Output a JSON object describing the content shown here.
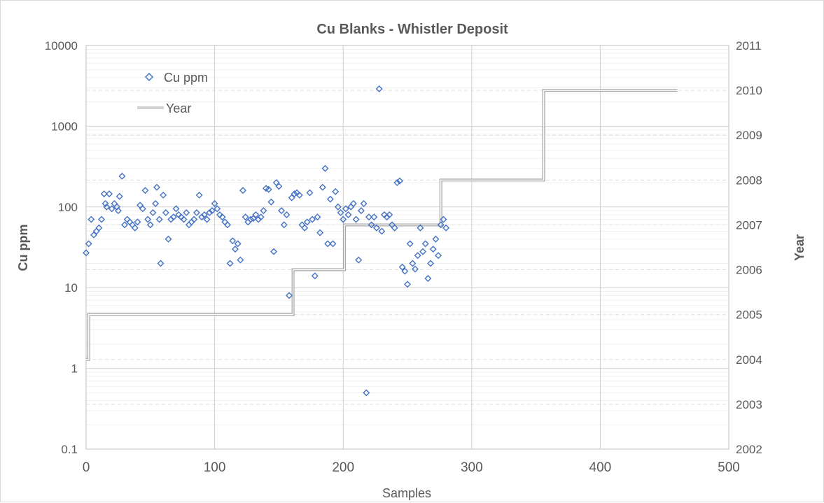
{
  "chart_data": {
    "type": "scatter",
    "title": "Cu Blanks - Whistler Deposit",
    "xlabel": "Samples",
    "ylabel": "Cu ppm",
    "y2label": "Year",
    "xlim": [
      0,
      500
    ],
    "ylim": [
      0.1,
      10000
    ],
    "yscale": "log",
    "y2lim": [
      2002,
      2011
    ],
    "x_ticks": [
      "0",
      "100",
      "200",
      "300",
      "400",
      "500"
    ],
    "y_ticks": [
      "0.1",
      "1",
      "10",
      "100",
      "1000",
      "10000"
    ],
    "y2_ticks": [
      "2002",
      "2003",
      "2004",
      "2005",
      "2006",
      "2007",
      "2008",
      "2009",
      "2010",
      "2011"
    ],
    "grid": true,
    "legend_position": "top-left",
    "series": [
      {
        "name": "Cu ppm",
        "kind": "scatter",
        "axis": "left",
        "marker": "diamond",
        "color": "#4472c4",
        "points": [
          [
            0,
            27
          ],
          [
            2,
            35
          ],
          [
            4,
            70
          ],
          [
            6,
            45
          ],
          [
            8,
            50
          ],
          [
            10,
            55
          ],
          [
            12,
            70
          ],
          [
            14,
            145
          ],
          [
            15,
            110
          ],
          [
            16,
            100
          ],
          [
            18,
            145
          ],
          [
            20,
            95
          ],
          [
            22,
            110
          ],
          [
            24,
            100
          ],
          [
            25,
            90
          ],
          [
            26,
            135
          ],
          [
            28,
            240
          ],
          [
            30,
            60
          ],
          [
            32,
            70
          ],
          [
            34,
            65
          ],
          [
            36,
            60
          ],
          [
            38,
            55
          ],
          [
            40,
            65
          ],
          [
            42,
            105
          ],
          [
            44,
            95
          ],
          [
            46,
            160
          ],
          [
            48,
            70
          ],
          [
            50,
            60
          ],
          [
            52,
            85
          ],
          [
            54,
            110
          ],
          [
            55,
            175
          ],
          [
            57,
            70
          ],
          [
            58,
            20
          ],
          [
            60,
            140
          ],
          [
            62,
            85
          ],
          [
            64,
            40
          ],
          [
            66,
            70
          ],
          [
            68,
            75
          ],
          [
            70,
            95
          ],
          [
            72,
            80
          ],
          [
            74,
            75
          ],
          [
            76,
            70
          ],
          [
            78,
            85
          ],
          [
            80,
            60
          ],
          [
            82,
            65
          ],
          [
            84,
            70
          ],
          [
            86,
            85
          ],
          [
            88,
            140
          ],
          [
            90,
            75
          ],
          [
            92,
            80
          ],
          [
            94,
            70
          ],
          [
            96,
            85
          ],
          [
            98,
            90
          ],
          [
            100,
            110
          ],
          [
            102,
            95
          ],
          [
            104,
            80
          ],
          [
            106,
            75
          ],
          [
            108,
            65
          ],
          [
            110,
            60
          ],
          [
            112,
            20
          ],
          [
            114,
            38
          ],
          [
            116,
            30
          ],
          [
            118,
            35
          ],
          [
            120,
            22
          ],
          [
            122,
            160
          ],
          [
            124,
            75
          ],
          [
            126,
            65
          ],
          [
            128,
            70
          ],
          [
            130,
            72
          ],
          [
            132,
            80
          ],
          [
            134,
            70
          ],
          [
            136,
            75
          ],
          [
            138,
            90
          ],
          [
            140,
            170
          ],
          [
            142,
            165
          ],
          [
            144,
            115
          ],
          [
            146,
            28
          ],
          [
            148,
            200
          ],
          [
            150,
            180
          ],
          [
            152,
            90
          ],
          [
            154,
            60
          ],
          [
            156,
            80
          ],
          [
            158,
            8
          ],
          [
            160,
            130
          ],
          [
            162,
            145
          ],
          [
            164,
            150
          ],
          [
            166,
            140
          ],
          [
            168,
            60
          ],
          [
            170,
            55
          ],
          [
            172,
            65
          ],
          [
            174,
            150
          ],
          [
            176,
            70
          ],
          [
            178,
            14
          ],
          [
            180,
            75
          ],
          [
            182,
            48
          ],
          [
            184,
            175
          ],
          [
            186,
            300
          ],
          [
            188,
            35
          ],
          [
            190,
            125
          ],
          [
            192,
            35
          ],
          [
            194,
            155
          ],
          [
            196,
            100
          ],
          [
            198,
            85
          ],
          [
            200,
            70
          ],
          [
            202,
            95
          ],
          [
            204,
            80
          ],
          [
            206,
            100
          ],
          [
            208,
            110
          ],
          [
            210,
            70
          ],
          [
            212,
            22
          ],
          [
            214,
            90
          ],
          [
            216,
            110
          ],
          [
            218,
            0.5
          ],
          [
            220,
            75
          ],
          [
            222,
            60
          ],
          [
            224,
            75
          ],
          [
            226,
            55
          ],
          [
            228,
            2900
          ],
          [
            230,
            50
          ],
          [
            232,
            80
          ],
          [
            234,
            75
          ],
          [
            236,
            80
          ],
          [
            238,
            60
          ],
          [
            240,
            55
          ],
          [
            242,
            200
          ],
          [
            244,
            210
          ],
          [
            246,
            18
          ],
          [
            248,
            16
          ],
          [
            250,
            11
          ],
          [
            252,
            35
          ],
          [
            254,
            20
          ],
          [
            256,
            17
          ],
          [
            258,
            25
          ],
          [
            260,
            55
          ],
          [
            262,
            28
          ],
          [
            264,
            35
          ],
          [
            266,
            13
          ],
          [
            268,
            20
          ],
          [
            270,
            30
          ],
          [
            272,
            40
          ],
          [
            274,
            25
          ],
          [
            276,
            60
          ],
          [
            278,
            70
          ],
          [
            280,
            55
          ]
        ]
      },
      {
        "name": "Year",
        "kind": "step-line",
        "axis": "right",
        "color": "#a6a6a6",
        "steps": [
          [
            0,
            2004
          ],
          [
            2,
            2005
          ],
          [
            160,
            2005
          ],
          [
            161,
            2006
          ],
          [
            200,
            2006
          ],
          [
            201,
            2007
          ],
          [
            275,
            2007
          ],
          [
            276,
            2008
          ],
          [
            355,
            2008
          ],
          [
            356,
            2010
          ],
          [
            460,
            2010
          ]
        ]
      }
    ]
  }
}
